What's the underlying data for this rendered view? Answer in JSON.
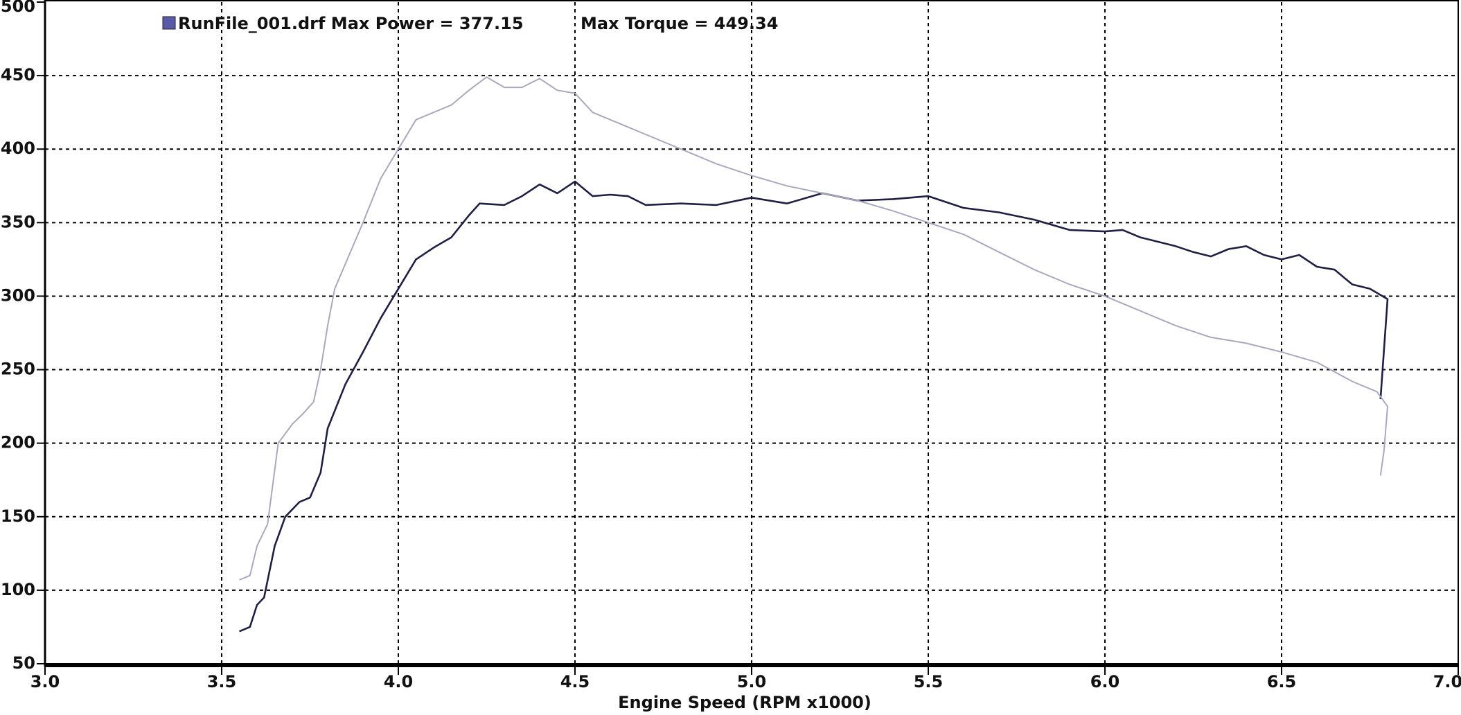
{
  "chart_data": {
    "type": "line",
    "x_label": "Engine Speed (RPM x1000)",
    "xlim": [
      3.0,
      7.0
    ],
    "xticks": [
      {
        "value": 3,
        "label": "3.0"
      },
      3.5,
      {
        "value": 4,
        "label": "4.0"
      },
      4.5,
      {
        "value": 5,
        "label": "5.0"
      },
      5.5,
      {
        "value": 6,
        "label": "6.0"
      },
      6.5,
      {
        "value": 7,
        "label": "7.0"
      }
    ],
    "ylim": [
      50,
      500
    ],
    "yticks": [
      50,
      100,
      150,
      200,
      250,
      300,
      350,
      400,
      450,
      500
    ],
    "grid": true,
    "series": [
      {
        "name": "RunFile_001.drf Max Power = 377.15",
        "color": "#1f1f45",
        "legend_color": "#5a5aa8",
        "x": [
          3.55,
          3.58,
          3.6,
          3.62,
          3.65,
          3.68,
          3.72,
          3.75,
          3.78,
          3.8,
          3.85,
          3.9,
          3.95,
          4.0,
          4.05,
          4.1,
          4.15,
          4.2,
          4.23,
          4.3,
          4.35,
          4.4,
          4.45,
          4.5,
          4.55,
          4.6,
          4.65,
          4.7,
          4.8,
          4.9,
          5.0,
          5.1,
          5.2,
          5.3,
          5.4,
          5.5,
          5.6,
          5.7,
          5.8,
          5.9,
          6.0,
          6.05,
          6.1,
          6.2,
          6.25,
          6.3,
          6.35,
          6.4,
          6.45,
          6.5,
          6.55,
          6.6,
          6.65,
          6.7,
          6.75,
          6.8,
          6.78
        ],
        "values": [
          72,
          75,
          90,
          95,
          130,
          150,
          160,
          163,
          180,
          210,
          240,
          262,
          285,
          305,
          325,
          333,
          340,
          355,
          363,
          362,
          368,
          376,
          370,
          378,
          368,
          369,
          368,
          362,
          363,
          362,
          367,
          363,
          370,
          365,
          366,
          368,
          360,
          357,
          352,
          345,
          344,
          345,
          340,
          334,
          330,
          327,
          332,
          334,
          328,
          325,
          328,
          320,
          318,
          308,
          305,
          298,
          230
        ]
      },
      {
        "name": "Max Torque = 449.34",
        "color": "#a8a8c0",
        "x": [
          3.55,
          3.58,
          3.6,
          3.63,
          3.66,
          3.7,
          3.73,
          3.76,
          3.78,
          3.8,
          3.82,
          3.9,
          3.95,
          4.0,
          4.05,
          4.1,
          4.15,
          4.2,
          4.25,
          4.3,
          4.35,
          4.4,
          4.45,
          4.5,
          4.55,
          4.6,
          4.7,
          4.8,
          4.9,
          5.0,
          5.1,
          5.2,
          5.3,
          5.4,
          5.5,
          5.6,
          5.7,
          5.8,
          5.9,
          6.0,
          6.1,
          6.2,
          6.3,
          6.4,
          6.5,
          6.6,
          6.7,
          6.77,
          6.8,
          6.79,
          6.78
        ],
        "values": [
          107,
          110,
          130,
          145,
          200,
          213,
          220,
          228,
          250,
          280,
          305,
          350,
          380,
          400,
          420,
          425,
          430,
          440,
          449,
          442,
          442,
          448,
          440,
          438,
          425,
          420,
          410,
          400,
          390,
          382,
          375,
          370,
          365,
          358,
          350,
          342,
          330,
          318,
          308,
          300,
          290,
          280,
          272,
          268,
          262,
          255,
          242,
          235,
          225,
          195,
          178
        ]
      }
    ]
  }
}
